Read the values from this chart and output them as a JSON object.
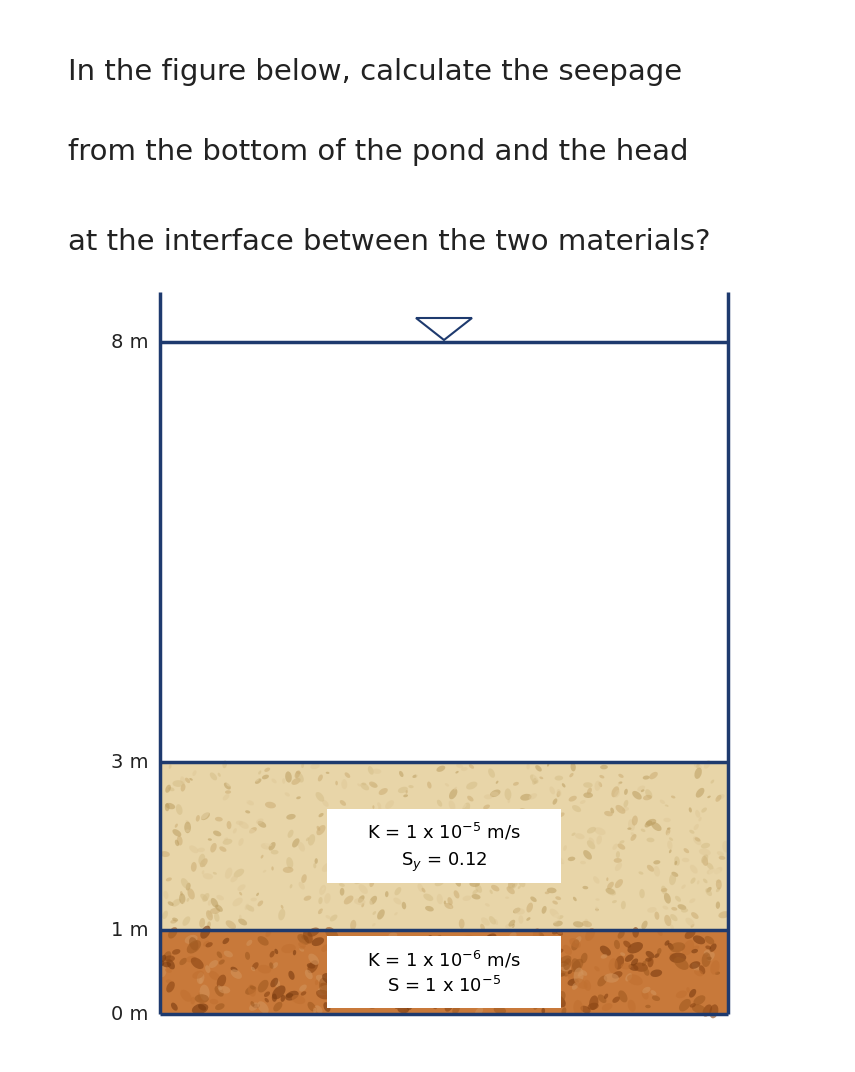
{
  "title_lines": [
    "In the figure below, calculate the seepage",
    "from the bottom of the pond and the head",
    "at the interface between the two materials?"
  ],
  "title_fontsize": 21,
  "title_color": "#222222",
  "background_color": "#ffffff",
  "border_color": "#1e3a6e",
  "border_linewidth": 2.5,
  "layer1_color": "#e8d5a8",
  "layer2_color": "#c8793a",
  "water_color": "#ffffff",
  "label_fontsize": 13,
  "ytick_fontsize": 14,
  "ytick_labels": [
    "0 m",
    "1 m",
    "3 m",
    "8 m"
  ],
  "ytick_values": [
    0.0,
    1.0,
    3.0,
    8.0
  ],
  "layer1_text1": "K = 1 x 10$^{-5}$ m/s",
  "layer1_text2": "S$_y$ = 0.12",
  "layer2_text1": "K = 1 x 10$^{-6}$ m/s",
  "layer2_text2": "S = 1 x 10$^{-5}$"
}
